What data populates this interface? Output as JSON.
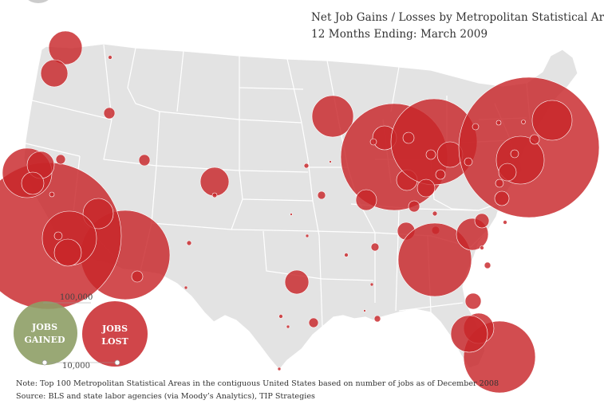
{
  "title_line1": "Net Job Gains / Losses by  Metropolitan Statistical Area,",
  "title_line2": "12 Months Ending:  March  2009",
  "note": "Note: Top 100 Metropolitan Statistical Areas in the contiguous United States based on number of jobs as of December 2008",
  "source": "Source:  BLS and state labor agencies (via Moody’s Analytics), TIP Strategies",
  "legend": {
    "gained_label_1": "JOBS",
    "gained_label_2": "GAINED",
    "lost_label_1": "JOBS",
    "lost_label_2": "LOST",
    "scale_large": "100,000",
    "scale_small": "10,000"
  },
  "colors": {
    "lost": "#c8262a",
    "gained": "#8e9f66",
    "land": "#e3e3e3",
    "border": "#ffffff"
  }
}
